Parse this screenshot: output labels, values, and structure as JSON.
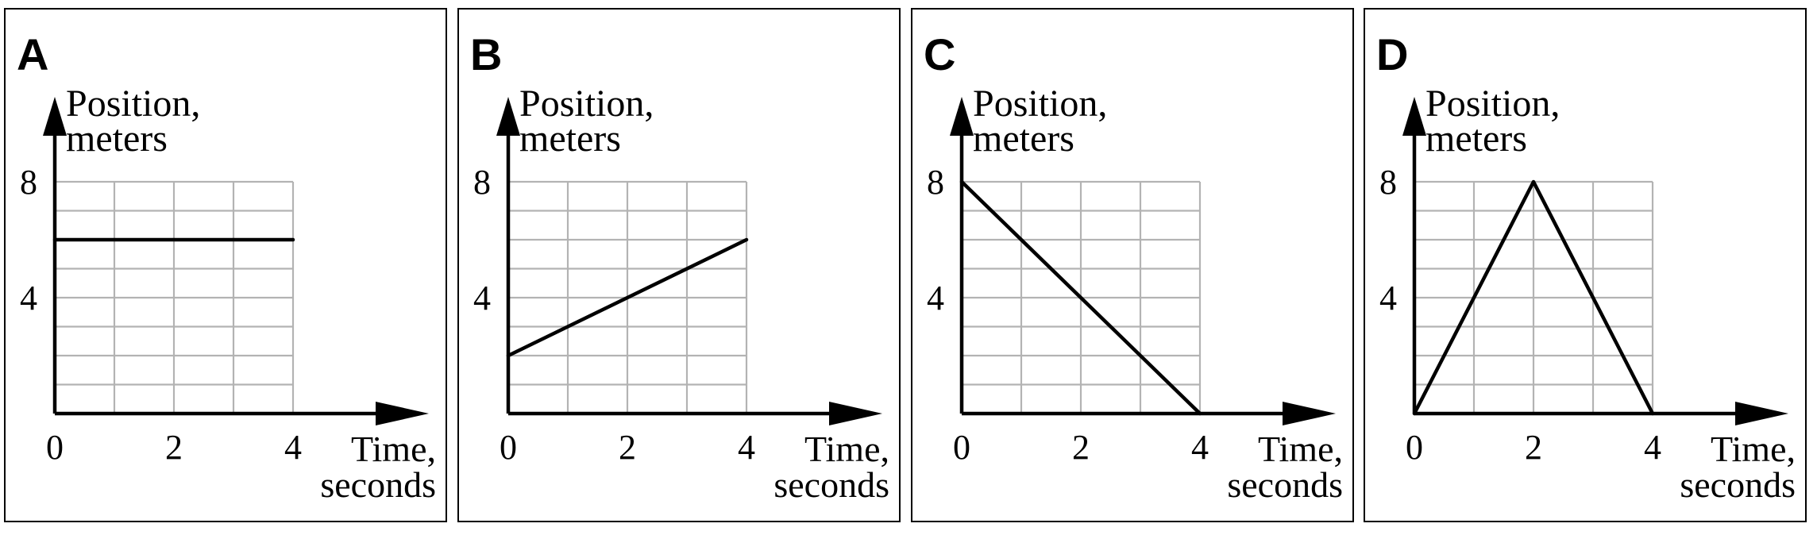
{
  "chart_data": [
    {
      "type": "line",
      "panel_label": "A",
      "ylabel_lines": [
        "Position,",
        "meters"
      ],
      "xlabel_lines": [
        "Time,",
        "seconds"
      ],
      "x_ticks": [
        "0",
        "2",
        "4"
      ],
      "y_ticks": [
        "4",
        "8"
      ],
      "xlim": [
        0,
        4
      ],
      "ylim": [
        0,
        8
      ],
      "grid": true,
      "x": [
        0,
        4
      ],
      "y": [
        6,
        6
      ]
    },
    {
      "type": "line",
      "panel_label": "B",
      "ylabel_lines": [
        "Position,",
        "meters"
      ],
      "xlabel_lines": [
        "Time,",
        "seconds"
      ],
      "x_ticks": [
        "0",
        "2",
        "4"
      ],
      "y_ticks": [
        "4",
        "8"
      ],
      "xlim": [
        0,
        4
      ],
      "ylim": [
        0,
        8
      ],
      "grid": true,
      "x": [
        0,
        4
      ],
      "y": [
        2,
        6
      ]
    },
    {
      "type": "line",
      "panel_label": "C",
      "ylabel_lines": [
        "Position,",
        "meters"
      ],
      "xlabel_lines": [
        "Time,",
        "seconds"
      ],
      "x_ticks": [
        "0",
        "2",
        "4"
      ],
      "y_ticks": [
        "4",
        "8"
      ],
      "xlim": [
        0,
        4
      ],
      "ylim": [
        0,
        8
      ],
      "grid": true,
      "x": [
        0,
        4
      ],
      "y": [
        8,
        0
      ]
    },
    {
      "type": "line",
      "panel_label": "D",
      "ylabel_lines": [
        "Position,",
        "meters"
      ],
      "xlabel_lines": [
        "Time,",
        "seconds"
      ],
      "x_ticks": [
        "0",
        "2",
        "4"
      ],
      "y_ticks": [
        "4",
        "8"
      ],
      "xlim": [
        0,
        4
      ],
      "ylim": [
        0,
        8
      ],
      "grid": true,
      "x": [
        0,
        2,
        4
      ],
      "y": [
        0,
        8,
        0
      ]
    }
  ]
}
